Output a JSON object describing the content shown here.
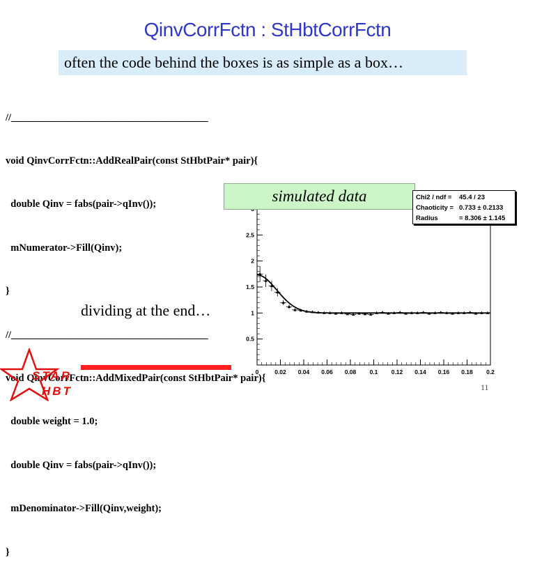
{
  "slide": {
    "title": "QinvCorrFctn : StHbtCorrFctn",
    "subtitle": "often the code behind the boxes is as simple as a box…",
    "code_lines": [
      "//_______________________________________",
      "void QinvCorrFctn::AddRealPair(const StHbtPair* pair){",
      "  double Qinv = fabs(pair->qInv());",
      "  mNumerator->Fill(Qinv);",
      "}",
      "//_______________________________________",
      "void QinvCorrFctn::AddMixedPair(const StHbtPair* pair){",
      "  double weight = 1.0;",
      "  double Qinv = fabs(pair->qInv());",
      "  mDenominator->Fill(Qinv,weight);",
      "}"
    ],
    "simulated_label": "simulated data",
    "dividing_text": "dividing at the end…",
    "logo_line1": "STAR",
    "logo_line2": "HBT",
    "page_number": "11",
    "accent_color": "#2f39c8",
    "logo_color": "#e01010"
  },
  "stats": {
    "rows": [
      {
        "label": "Chi2 / ndf =",
        "value": "45.4 / 23"
      },
      {
        "label": "Chaoticity =",
        "value": "0.733  ± 0.2133"
      },
      {
        "label": "Radius",
        "value": "= 8.306  ± 1.145"
      }
    ]
  },
  "chart_data": {
    "type": "scatter",
    "title": "",
    "xlabel": "",
    "ylabel": "",
    "xlim": [
      0,
      0.2
    ],
    "ylim": [
      0,
      3
    ],
    "x_ticks": [
      "0",
      "0.02",
      "0.04",
      "0.06",
      "0.08",
      "0.1",
      "0.12",
      "0.14",
      "0.16",
      "0.18",
      "0.2"
    ],
    "y_ticks": [
      "0.5",
      "1",
      "1.5",
      "2",
      "2.5",
      "3"
    ],
    "series": [
      {
        "x": [
          0.0025,
          0.0075,
          0.0125,
          0.0175,
          0.0225,
          0.0275,
          0.0325,
          0.0375,
          0.0425,
          0.0475,
          0.0525,
          0.0575,
          0.0625,
          0.0675,
          0.0725,
          0.0775,
          0.0825,
          0.0875,
          0.0925,
          0.0975,
          0.1025,
          0.1075,
          0.1125,
          0.1175,
          0.1225,
          0.1275,
          0.1325,
          0.1375,
          0.1425,
          0.1475,
          0.1525,
          0.1575,
          0.1625,
          0.1675,
          0.1725,
          0.1775,
          0.1825,
          0.1875,
          0.1925,
          0.1975
        ],
        "y": [
          1.75,
          1.62,
          1.52,
          1.4,
          1.2,
          1.12,
          1.06,
          1.05,
          1.03,
          1.02,
          1.01,
          1.0,
          1.0,
          0.99,
          1.0,
          0.98,
          0.97,
          0.99,
          0.98,
          0.97,
          1.0,
          1.01,
          0.99,
          1.0,
          1.01,
          0.99,
          1.0,
          1.0,
          1.01,
          0.99,
          1.0,
          1.01,
          1.0,
          0.99,
          1.0,
          1.0,
          1.01,
          0.99,
          1.0,
          1.0
        ],
        "err": [
          0.15,
          0.12,
          0.1,
          0.08,
          0.05,
          0.04,
          0.03,
          0.02,
          0.02,
          0.02,
          0.02,
          0.01,
          0.01,
          0.01,
          0.01,
          0.01,
          0.01,
          0.01,
          0.01,
          0.01,
          0.01,
          0.01,
          0.01,
          0.01,
          0.01,
          0.01,
          0.01,
          0.01,
          0.01,
          0.01,
          0.01,
          0.01,
          0.01,
          0.01,
          0.01,
          0.01,
          0.01,
          0.01,
          0.01,
          0.01
        ]
      }
    ],
    "fit": {
      "lambda": 0.733,
      "radius_fm": 8.306
    }
  }
}
